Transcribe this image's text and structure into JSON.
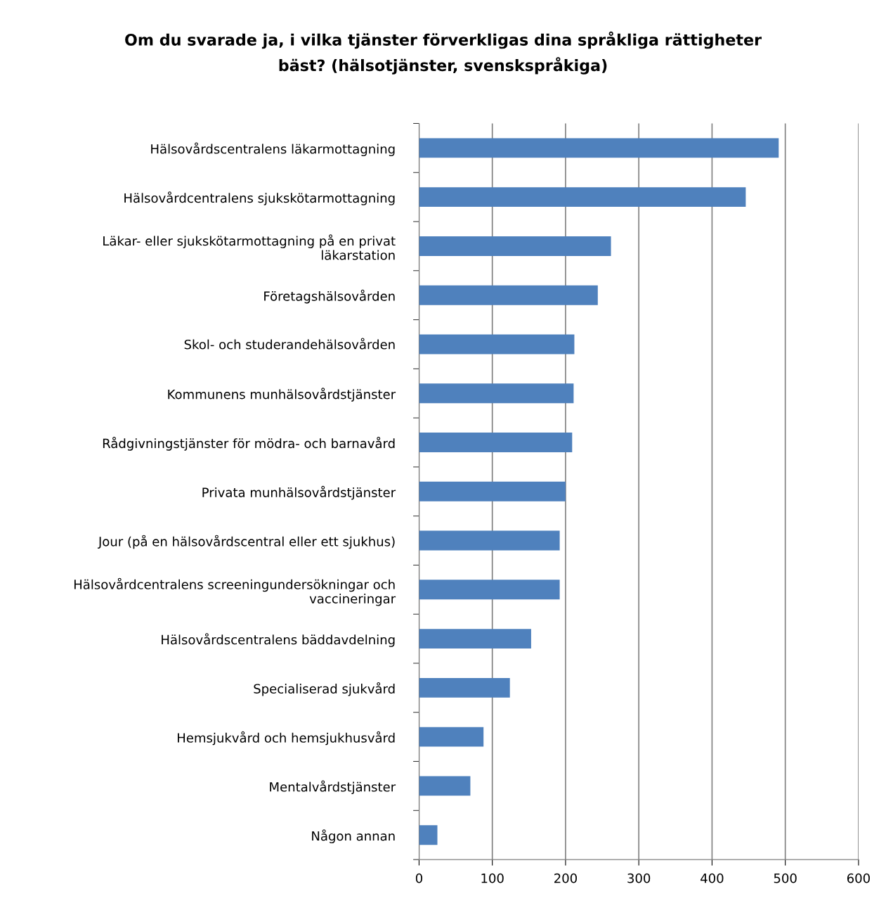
{
  "chart_data": {
    "type": "bar",
    "orientation": "horizontal",
    "title": "Om du svarade ja, i vilka tjänster förverkligas dina språkliga rättigheter\nbäst? (hälsotjänster, svenskspråkiga)",
    "categories": [
      "Hälsovårdscentralens läkarmottagning",
      "Hälsovårdcentralens sjukskötarmottagning",
      "Läkar- eller sjukskötarmottagning på en privat\nläkarstation",
      "Företagshälsovården",
      "Skol- och studerandehälsovården",
      "Kommunens munhälsovårdstjänster",
      "Rådgivningstjänster för mödra- och barnavård",
      "Privata munhälsovårdstjänster",
      "Jour (på en hälsovårdscentral eller ett sjukhus)",
      "Hälsovårdcentralens screeningundersökningar och\nvaccineringar",
      "Hälsovårdscentralens bäddavdelning",
      "Specialiserad sjukvård",
      "Hemsjukvård och hemsjukhusvård",
      "Mentalvårdstjänster",
      "Någon annan"
    ],
    "values": [
      491,
      446,
      262,
      244,
      212,
      211,
      209,
      200,
      192,
      192,
      153,
      124,
      88,
      70,
      25
    ],
    "color": "#4f81bd",
    "xlim": [
      0,
      600
    ],
    "xticks": [
      0,
      100,
      200,
      300,
      400,
      500,
      600
    ],
    "grid": "x",
    "legend": false
  }
}
